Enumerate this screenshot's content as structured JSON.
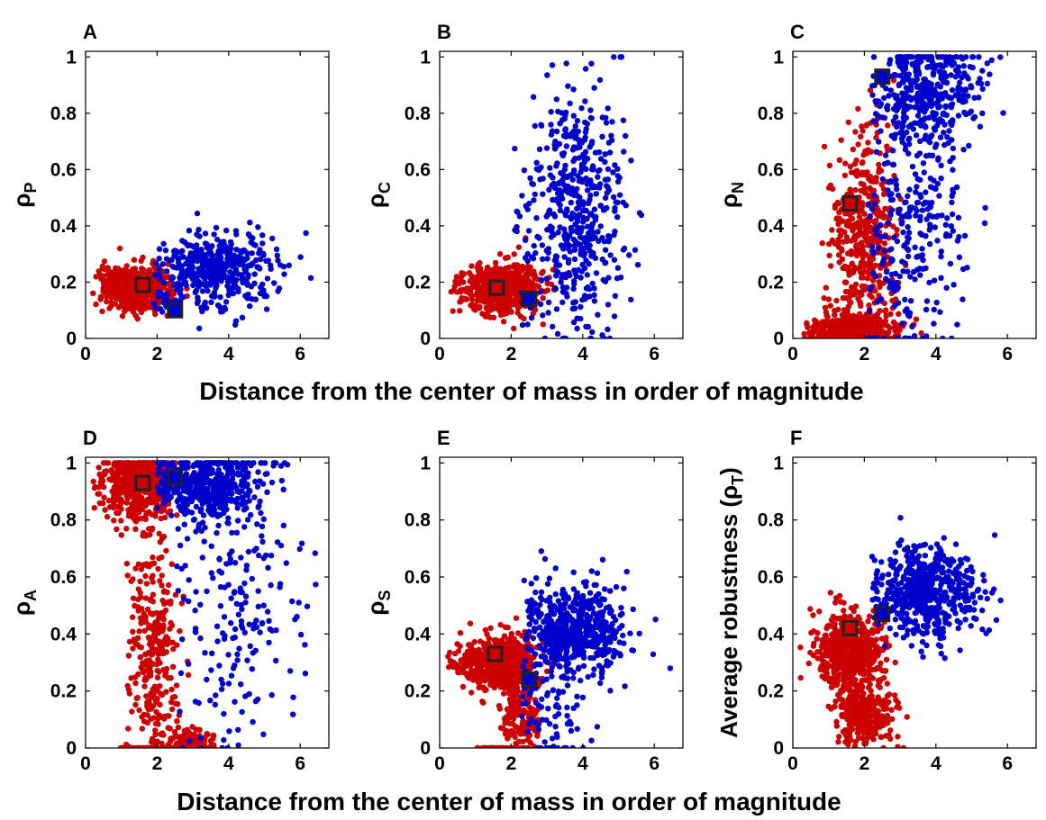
{
  "figure": {
    "xlabels": [
      "Distance from the center of mass in order of magnitude",
      "Distance from the center of mass in order of magnitude"
    ]
  },
  "colors": {
    "red": "#cc0000",
    "blue": "#0000cc",
    "marker_edge": "#222222"
  },
  "chart_data": [
    {
      "type": "scatter",
      "panel": "A",
      "ylabel_main": "ρ",
      "ylabel_sub": "P",
      "xlim": [
        0,
        6.8
      ],
      "ylim": [
        0,
        1.02
      ],
      "xticks": [
        0,
        2,
        4,
        6
      ],
      "yticks": [
        0,
        0.2,
        0.4,
        0.6,
        0.8,
        1
      ],
      "series": [
        {
          "color": "red",
          "clusters": [
            {
              "n": 550,
              "cx": 1.45,
              "cy": 0.18,
              "sx": 0.5,
              "sy": 0.04,
              "xmin": 0.2,
              "xmax": 3.3
            }
          ]
        },
        {
          "color": "blue",
          "clusters": [
            {
              "n": 450,
              "cx": 3.6,
              "cy": 0.24,
              "sx": 0.85,
              "sy": 0.07,
              "xmin": 1.9,
              "xmax": 6.6
            }
          ]
        }
      ],
      "highlights": [
        {
          "color": "red",
          "x": 1.6,
          "y": 0.19
        },
        {
          "color": "blue",
          "x": 2.5,
          "y": 0.1
        }
      ]
    },
    {
      "type": "scatter",
      "panel": "B",
      "ylabel_main": "ρ",
      "ylabel_sub": "C",
      "xlim": [
        0,
        6.8
      ],
      "ylim": [
        0,
        1.02
      ],
      "xticks": [
        0,
        2,
        4,
        6
      ],
      "yticks": [
        0,
        0.2,
        0.4,
        0.6,
        0.8,
        1
      ],
      "series": [
        {
          "color": "red",
          "clusters": [
            {
              "n": 550,
              "cx": 1.75,
              "cy": 0.18,
              "sx": 0.55,
              "sy": 0.045,
              "xmin": 0.3,
              "xmax": 3.5
            }
          ]
        },
        {
          "color": "blue",
          "clusters": [
            {
              "n": 500,
              "cx": 3.8,
              "cy": 0.45,
              "sx": 0.7,
              "sy": 0.22,
              "xmin": 2.0,
              "xmax": 6.5
            }
          ]
        }
      ],
      "highlights": [
        {
          "color": "red",
          "x": 1.6,
          "y": 0.18
        },
        {
          "color": "blue",
          "x": 2.5,
          "y": 0.14
        }
      ]
    },
    {
      "type": "scatter",
      "panel": "C",
      "ylabel_main": "ρ",
      "ylabel_sub": "N",
      "xlim": [
        0,
        6.8
      ],
      "ylim": [
        0,
        1.02
      ],
      "xticks": [
        0,
        2,
        4,
        6
      ],
      "yticks": [
        0,
        0.2,
        0.4,
        0.6,
        0.8,
        1
      ],
      "series": [
        {
          "color": "red",
          "clusters": [
            {
              "n": 450,
              "cx": 1.7,
              "cy": 0.03,
              "sx": 0.6,
              "sy": 0.03,
              "xmin": 0.3,
              "xmax": 3.6
            },
            {
              "n": 450,
              "cx": 2.0,
              "cy": 0.35,
              "sx": 0.45,
              "sy": 0.2,
              "xmin": 0.8,
              "xmax": 3.4
            }
          ]
        },
        {
          "color": "blue",
          "clusters": [
            {
              "n": 400,
              "cx": 3.7,
              "cy": 0.88,
              "sx": 0.75,
              "sy": 0.1,
              "xmin": 2.2,
              "xmax": 6.6
            },
            {
              "n": 250,
              "cx": 3.4,
              "cy": 0.35,
              "sx": 0.75,
              "sy": 0.25,
              "xmin": 2.1,
              "xmax": 6.6
            }
          ]
        }
      ],
      "highlights": [
        {
          "color": "red",
          "x": 1.6,
          "y": 0.48
        },
        {
          "color": "blue",
          "x": 2.5,
          "y": 0.93
        }
      ]
    },
    {
      "type": "scatter",
      "panel": "D",
      "ylabel_main": "ρ",
      "ylabel_sub": "A",
      "xlim": [
        0,
        6.8
      ],
      "ylim": [
        0,
        1.02
      ],
      "xticks": [
        0,
        2,
        4,
        6
      ],
      "yticks": [
        0,
        0.2,
        0.4,
        0.6,
        0.8,
        1
      ],
      "series": [
        {
          "color": "red",
          "clusters": [
            {
              "n": 500,
              "cx": 1.5,
              "cy": 0.92,
              "sx": 0.5,
              "sy": 0.06,
              "xmin": 0.2,
              "xmax": 3.4
            },
            {
              "n": 300,
              "cx": 1.9,
              "cy": 0.35,
              "sx": 0.35,
              "sy": 0.2,
              "xmin": 1.1,
              "xmax": 3.0
            },
            {
              "n": 150,
              "cx": 2.9,
              "cy": 0.02,
              "sx": 0.35,
              "sy": 0.02,
              "xmin": 2.0,
              "xmax": 3.6
            },
            {
              "n": 40,
              "cx": 1.8,
              "cy": 0.0,
              "sx": 0.6,
              "sy": 0.0,
              "xmin": 0.8,
              "xmax": 3.0
            }
          ]
        },
        {
          "color": "blue",
          "clusters": [
            {
              "n": 450,
              "cx": 3.4,
              "cy": 0.93,
              "sx": 0.8,
              "sy": 0.06,
              "xmin": 2.0,
              "xmax": 6.2
            },
            {
              "n": 200,
              "cx": 4.2,
              "cy": 0.5,
              "sx": 0.9,
              "sy": 0.25,
              "xmin": 2.5,
              "xmax": 6.6
            }
          ]
        }
      ],
      "highlights": [
        {
          "color": "red",
          "x": 1.6,
          "y": 0.93
        },
        {
          "color": "blue",
          "x": 2.5,
          "y": 0.95
        }
      ]
    },
    {
      "type": "scatter",
      "panel": "E",
      "ylabel_main": "ρ",
      "ylabel_sub": "S",
      "xlim": [
        0,
        6.8
      ],
      "ylim": [
        0,
        1.02
      ],
      "xticks": [
        0,
        2,
        4,
        6
      ],
      "yticks": [
        0,
        0.2,
        0.4,
        0.6,
        0.8,
        1
      ],
      "series": [
        {
          "color": "red",
          "clusters": [
            {
              "n": 600,
              "cx": 1.6,
              "cy": 0.3,
              "sx": 0.55,
              "sy": 0.045,
              "xmin": 0.2,
              "xmax": 3.6
            },
            {
              "n": 150,
              "cx": 2.3,
              "cy": 0.12,
              "sx": 0.3,
              "sy": 0.07,
              "xmin": 1.5,
              "xmax": 3.1
            },
            {
              "n": 40,
              "cx": 1.8,
              "cy": 0.0,
              "sx": 0.5,
              "sy": 0.0,
              "xmin": 1.0,
              "xmax": 2.8
            }
          ]
        },
        {
          "color": "blue",
          "clusters": [
            {
              "n": 550,
              "cx": 3.8,
              "cy": 0.41,
              "sx": 0.7,
              "sy": 0.08,
              "xmin": 2.3,
              "xmax": 6.6
            },
            {
              "n": 80,
              "cx": 3.2,
              "cy": 0.12,
              "sx": 0.5,
              "sy": 0.1,
              "xmin": 2.3,
              "xmax": 5.5
            }
          ]
        }
      ],
      "highlights": [
        {
          "color": "red",
          "x": 1.55,
          "y": 0.33
        },
        {
          "color": "blue",
          "x": 2.5,
          "y": 0.24
        }
      ]
    },
    {
      "type": "scatter",
      "panel": "F",
      "ylabel_main": "Average robustness (ρ",
      "ylabel_sub": "T",
      "ylabel_end": ")",
      "xlim": [
        0,
        6.8
      ],
      "ylim": [
        0,
        1.02
      ],
      "xticks": [
        0,
        2,
        4,
        6
      ],
      "yticks": [
        0,
        0.2,
        0.4,
        0.6,
        0.8,
        1
      ],
      "series": [
        {
          "color": "red",
          "clusters": [
            {
              "n": 600,
              "cx": 1.6,
              "cy": 0.34,
              "sx": 0.45,
              "sy": 0.06,
              "xmin": 0.2,
              "xmax": 3.3
            },
            {
              "n": 300,
              "cx": 2.0,
              "cy": 0.12,
              "sx": 0.45,
              "sy": 0.05,
              "xmin": 1.0,
              "xmax": 3.2
            }
          ]
        },
        {
          "color": "blue",
          "clusters": [
            {
              "n": 550,
              "cx": 3.7,
              "cy": 0.55,
              "sx": 0.7,
              "sy": 0.08,
              "xmin": 2.2,
              "xmax": 6.6
            }
          ]
        }
      ],
      "highlights": [
        {
          "color": "red",
          "x": 1.6,
          "y": 0.42
        },
        {
          "color": "blue",
          "x": 2.5,
          "y": 0.47
        }
      ]
    }
  ]
}
